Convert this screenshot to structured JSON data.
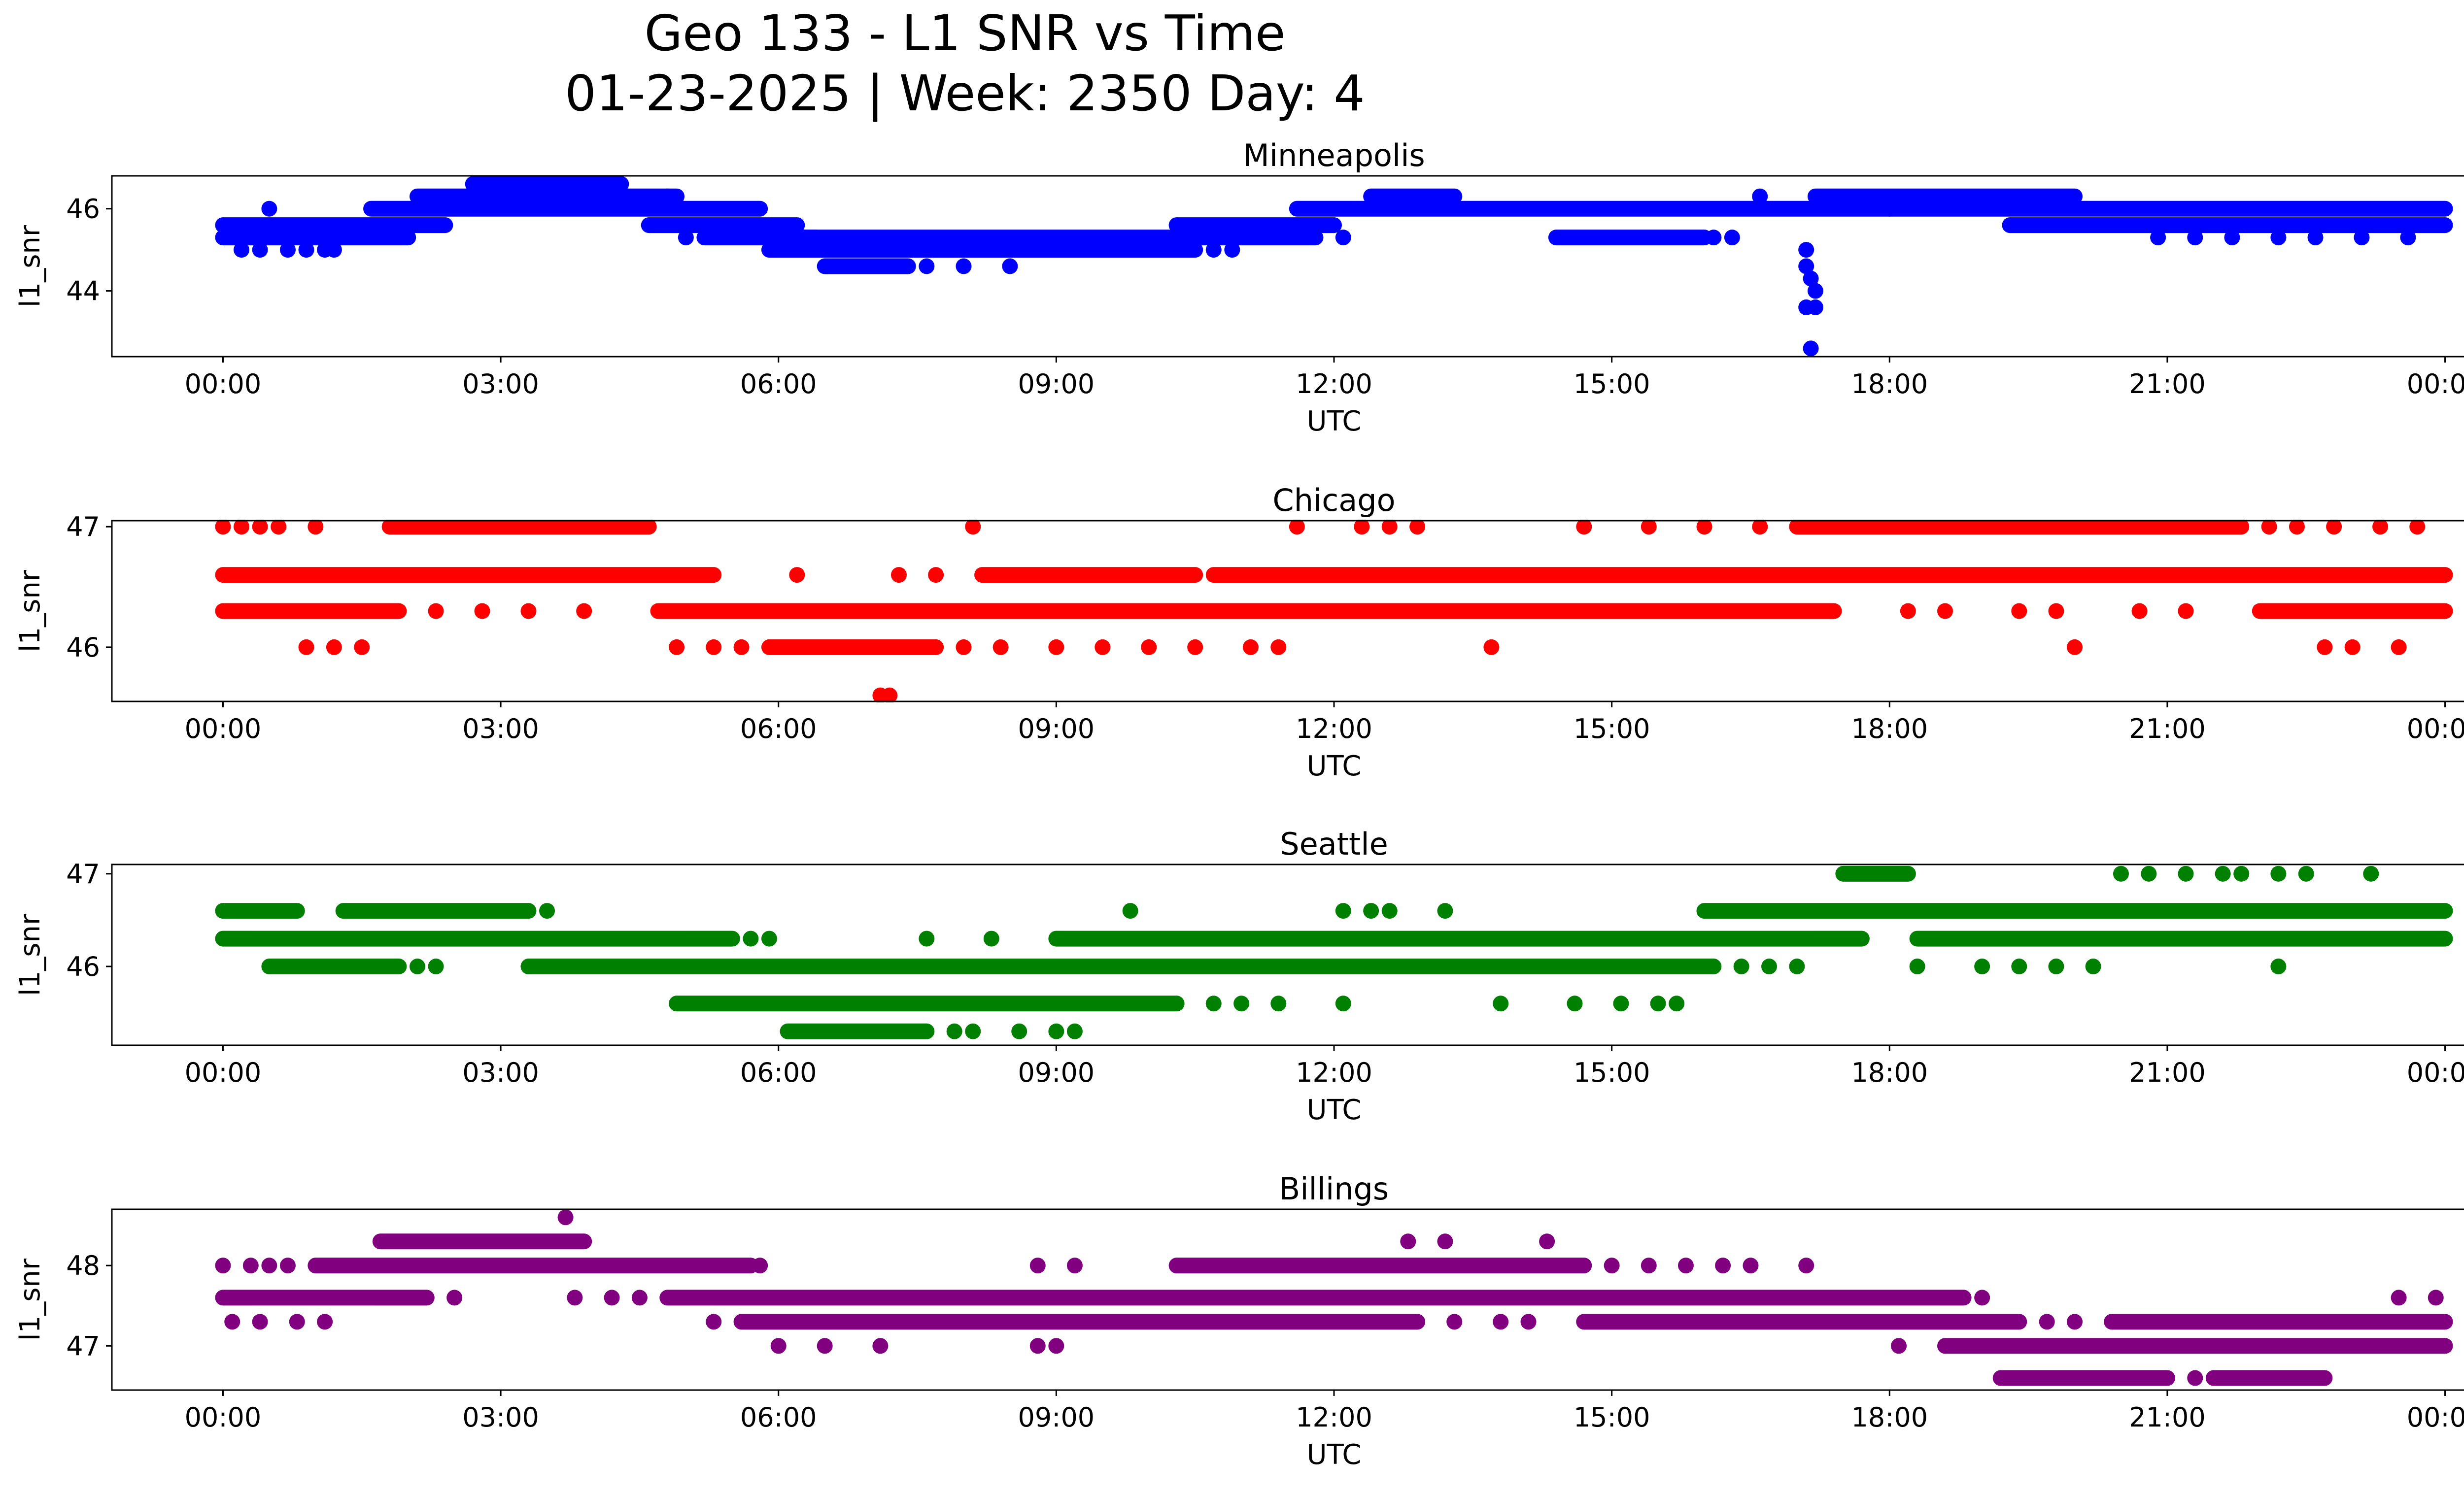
{
  "figure": {
    "title_line1": "Geo 133 - L1 SNR vs Time",
    "title_line2": "01-23-2025 | Week: 2350 Day: 4"
  },
  "chart_data": [
    {
      "type": "scatter",
      "title": "Minneapolis",
      "xlabel": "UTC",
      "ylabel": "l1_snr",
      "color": "#0000ff",
      "xlim": [
        -1.2,
        25.2
      ],
      "ylim": [
        42.4,
        46.8
      ],
      "xticks": [
        0,
        3,
        6,
        9,
        12,
        15,
        18,
        21,
        24
      ],
      "xtick_labels": [
        "00:00",
        "03:00",
        "06:00",
        "09:00",
        "12:00",
        "15:00",
        "18:00",
        "21:00",
        "00:00"
      ],
      "yticks": [
        44,
        46
      ],
      "ytick_labels": [
        "44",
        "46"
      ],
      "segments": [
        {
          "y": 46.6,
          "x0": 2.7,
          "x1": 4.3
        },
        {
          "y": 46.3,
          "x0": 2.1,
          "x1": 4.9
        },
        {
          "y": 46.3,
          "x0": 12.4,
          "x1": 13.3
        },
        {
          "y": 46.3,
          "x0": 17.2,
          "x1": 20.0
        },
        {
          "y": 46.0,
          "x0": 1.6,
          "x1": 5.8
        },
        {
          "y": 46.0,
          "x0": 11.6,
          "x1": 18.0
        },
        {
          "y": 46.0,
          "x0": 18.0,
          "x1": 24.0
        },
        {
          "y": 45.6,
          "x0": 0.0,
          "x1": 2.4
        },
        {
          "y": 45.6,
          "x0": 4.6,
          "x1": 6.2
        },
        {
          "y": 45.6,
          "x0": 10.3,
          "x1": 12.0
        },
        {
          "y": 45.6,
          "x0": 19.3,
          "x1": 24.0
        },
        {
          "y": 45.3,
          "x0": 0.0,
          "x1": 2.0
        },
        {
          "y": 45.3,
          "x0": 5.2,
          "x1": 6.4
        },
        {
          "y": 45.3,
          "x0": 6.2,
          "x1": 11.8
        },
        {
          "y": 45.3,
          "x0": 14.4,
          "x1": 16.0
        },
        {
          "y": 45.0,
          "x0": 5.9,
          "x1": 10.5
        },
        {
          "y": 44.6,
          "x0": 6.5,
          "x1": 7.4
        }
      ],
      "points": [
        {
          "x": 0.5,
          "y": 46.0
        },
        {
          "x": 0.2,
          "y": 45.0
        },
        {
          "x": 0.4,
          "y": 45.0
        },
        {
          "x": 0.7,
          "y": 45.0
        },
        {
          "x": 0.9,
          "y": 45.0
        },
        {
          "x": 1.1,
          "y": 45.0
        },
        {
          "x": 1.2,
          "y": 45.0
        },
        {
          "x": 4.8,
          "y": 46.3
        },
        {
          "x": 5.0,
          "y": 45.3
        },
        {
          "x": 7.6,
          "y": 44.6
        },
        {
          "x": 8.0,
          "y": 44.6
        },
        {
          "x": 8.5,
          "y": 44.6
        },
        {
          "x": 10.7,
          "y": 45.0
        },
        {
          "x": 10.9,
          "y": 45.0
        },
        {
          "x": 12.1,
          "y": 45.3
        },
        {
          "x": 16.6,
          "y": 46.3
        },
        {
          "x": 16.1,
          "y": 45.3
        },
        {
          "x": 16.3,
          "y": 45.3
        },
        {
          "x": 17.1,
          "y": 45.0
        },
        {
          "x": 17.1,
          "y": 44.6
        },
        {
          "x": 17.15,
          "y": 44.3
        },
        {
          "x": 17.2,
          "y": 44.0
        },
        {
          "x": 17.1,
          "y": 43.6
        },
        {
          "x": 17.2,
          "y": 43.6
        },
        {
          "x": 17.15,
          "y": 42.6
        },
        {
          "x": 20.9,
          "y": 45.3
        },
        {
          "x": 21.3,
          "y": 45.3
        },
        {
          "x": 21.7,
          "y": 45.3
        },
        {
          "x": 22.2,
          "y": 45.3
        },
        {
          "x": 22.6,
          "y": 45.3
        },
        {
          "x": 23.1,
          "y": 45.3
        },
        {
          "x": 23.6,
          "y": 45.3
        }
      ]
    },
    {
      "type": "scatter",
      "title": "Chicago",
      "xlabel": "UTC",
      "ylabel": "l1_snr",
      "color": "#ff0000",
      "xlim": [
        -1.2,
        25.2
      ],
      "ylim": [
        45.55,
        47.05
      ],
      "xticks": [
        0,
        3,
        6,
        9,
        12,
        15,
        18,
        21,
        24
      ],
      "xtick_labels": [
        "00:00",
        "03:00",
        "06:00",
        "09:00",
        "12:00",
        "15:00",
        "18:00",
        "21:00",
        "00:00"
      ],
      "yticks": [
        46,
        47
      ],
      "ytick_labels": [
        "46",
        "47"
      ],
      "segments": [
        {
          "y": 47.0,
          "x0": 1.8,
          "x1": 4.6
        },
        {
          "y": 47.0,
          "x0": 17.0,
          "x1": 21.8
        },
        {
          "y": 46.6,
          "x0": 0.0,
          "x1": 5.3
        },
        {
          "y": 46.6,
          "x0": 10.7,
          "x1": 24.0
        },
        {
          "y": 46.6,
          "x0": 8.2,
          "x1": 10.5
        },
        {
          "y": 46.3,
          "x0": 4.7,
          "x1": 12.6
        },
        {
          "y": 46.3,
          "x0": 12.6,
          "x1": 17.4
        },
        {
          "y": 46.3,
          "x0": 0.0,
          "x1": 1.9
        },
        {
          "y": 46.3,
          "x0": 22.0,
          "x1": 24.0
        },
        {
          "y": 46.0,
          "x0": 5.9,
          "x1": 7.7
        }
      ],
      "points": [
        {
          "x": 0.0,
          "y": 47.0
        },
        {
          "x": 0.2,
          "y": 47.0
        },
        {
          "x": 0.4,
          "y": 47.0
        },
        {
          "x": 0.6,
          "y": 47.0
        },
        {
          "x": 1.0,
          "y": 47.0
        },
        {
          "x": 8.1,
          "y": 47.0
        },
        {
          "x": 11.6,
          "y": 47.0
        },
        {
          "x": 12.3,
          "y": 47.0
        },
        {
          "x": 12.6,
          "y": 47.0
        },
        {
          "x": 12.9,
          "y": 47.0
        },
        {
          "x": 14.7,
          "y": 47.0
        },
        {
          "x": 15.4,
          "y": 47.0
        },
        {
          "x": 16.0,
          "y": 47.0
        },
        {
          "x": 16.6,
          "y": 47.0
        },
        {
          "x": 22.1,
          "y": 47.0
        },
        {
          "x": 22.4,
          "y": 47.0
        },
        {
          "x": 22.8,
          "y": 47.0
        },
        {
          "x": 23.3,
          "y": 47.0
        },
        {
          "x": 23.7,
          "y": 47.0
        },
        {
          "x": 2.3,
          "y": 46.3
        },
        {
          "x": 2.8,
          "y": 46.3
        },
        {
          "x": 3.3,
          "y": 46.3
        },
        {
          "x": 3.9,
          "y": 46.3
        },
        {
          "x": 18.2,
          "y": 46.3
        },
        {
          "x": 18.6,
          "y": 46.3
        },
        {
          "x": 19.4,
          "y": 46.3
        },
        {
          "x": 19.8,
          "y": 46.3
        },
        {
          "x": 20.7,
          "y": 46.3
        },
        {
          "x": 21.2,
          "y": 46.3
        },
        {
          "x": 6.2,
          "y": 46.6
        },
        {
          "x": 7.3,
          "y": 46.6
        },
        {
          "x": 7.7,
          "y": 46.6
        },
        {
          "x": 0.9,
          "y": 46.0
        },
        {
          "x": 1.2,
          "y": 46.0
        },
        {
          "x": 1.5,
          "y": 46.0
        },
        {
          "x": 4.9,
          "y": 46.0
        },
        {
          "x": 5.3,
          "y": 46.0
        },
        {
          "x": 5.6,
          "y": 46.0
        },
        {
          "x": 8.0,
          "y": 46.0
        },
        {
          "x": 8.4,
          "y": 46.0
        },
        {
          "x": 9.0,
          "y": 46.0
        },
        {
          "x": 9.5,
          "y": 46.0
        },
        {
          "x": 10.0,
          "y": 46.0
        },
        {
          "x": 10.5,
          "y": 46.0
        },
        {
          "x": 11.1,
          "y": 46.0
        },
        {
          "x": 11.4,
          "y": 46.0
        },
        {
          "x": 13.7,
          "y": 46.0
        },
        {
          "x": 20.0,
          "y": 46.0
        },
        {
          "x": 22.7,
          "y": 46.0
        },
        {
          "x": 23.0,
          "y": 46.0
        },
        {
          "x": 23.5,
          "y": 46.0
        },
        {
          "x": 7.1,
          "y": 45.6
        },
        {
          "x": 7.2,
          "y": 45.6
        }
      ]
    },
    {
      "type": "scatter",
      "title": "Seattle",
      "xlabel": "UTC",
      "ylabel": "l1_snr",
      "color": "#008000",
      "xlim": [
        -1.2,
        25.2
      ],
      "ylim": [
        45.15,
        47.1
      ],
      "xticks": [
        0,
        3,
        6,
        9,
        12,
        15,
        18,
        21,
        24
      ],
      "xtick_labels": [
        "00:00",
        "03:00",
        "06:00",
        "09:00",
        "12:00",
        "15:00",
        "18:00",
        "21:00",
        "00:00"
      ],
      "yticks": [
        46,
        47
      ],
      "ytick_labels": [
        "46",
        "47"
      ],
      "segments": [
        {
          "y": 46.6,
          "x0": 0.0,
          "x1": 0.8
        },
        {
          "y": 46.6,
          "x0": 1.3,
          "x1": 3.3
        },
        {
          "y": 46.6,
          "x0": 16.0,
          "x1": 24.0
        },
        {
          "y": 46.3,
          "x0": 0.0,
          "x1": 5.5
        },
        {
          "y": 46.3,
          "x0": 9.0,
          "x1": 17.7
        },
        {
          "y": 46.3,
          "x0": 18.3,
          "x1": 24.0
        },
        {
          "y": 46.0,
          "x0": 0.5,
          "x1": 1.9
        },
        {
          "y": 46.0,
          "x0": 3.3,
          "x1": 16.1
        },
        {
          "y": 45.6,
          "x0": 4.9,
          "x1": 10.3
        },
        {
          "y": 45.3,
          "x0": 6.1,
          "x1": 7.6
        },
        {
          "y": 47.0,
          "x0": 17.5,
          "x1": 18.2
        }
      ],
      "points": [
        {
          "x": 3.5,
          "y": 46.6
        },
        {
          "x": 9.8,
          "y": 46.6
        },
        {
          "x": 12.1,
          "y": 46.6
        },
        {
          "x": 12.4,
          "y": 46.6
        },
        {
          "x": 12.6,
          "y": 46.6
        },
        {
          "x": 13.2,
          "y": 46.6
        },
        {
          "x": 5.7,
          "y": 46.3
        },
        {
          "x": 5.9,
          "y": 46.3
        },
        {
          "x": 7.6,
          "y": 46.3
        },
        {
          "x": 8.3,
          "y": 46.3
        },
        {
          "x": 2.1,
          "y": 46.0
        },
        {
          "x": 2.3,
          "y": 46.0
        },
        {
          "x": 16.4,
          "y": 46.0
        },
        {
          "x": 16.7,
          "y": 46.0
        },
        {
          "x": 17.0,
          "y": 46.0
        },
        {
          "x": 18.3,
          "y": 46.0
        },
        {
          "x": 19.0,
          "y": 46.0
        },
        {
          "x": 19.4,
          "y": 46.0
        },
        {
          "x": 19.8,
          "y": 46.0
        },
        {
          "x": 20.2,
          "y": 46.0
        },
        {
          "x": 22.2,
          "y": 46.0
        },
        {
          "x": 10.7,
          "y": 45.6
        },
        {
          "x": 11.0,
          "y": 45.6
        },
        {
          "x": 11.4,
          "y": 45.6
        },
        {
          "x": 12.1,
          "y": 45.6
        },
        {
          "x": 13.8,
          "y": 45.6
        },
        {
          "x": 14.6,
          "y": 45.6
        },
        {
          "x": 15.1,
          "y": 45.6
        },
        {
          "x": 15.5,
          "y": 45.6
        },
        {
          "x": 15.7,
          "y": 45.6
        },
        {
          "x": 7.9,
          "y": 45.3
        },
        {
          "x": 8.1,
          "y": 45.3
        },
        {
          "x": 8.6,
          "y": 45.3
        },
        {
          "x": 9.0,
          "y": 45.3
        },
        {
          "x": 9.2,
          "y": 45.3
        },
        {
          "x": 20.5,
          "y": 47.0
        },
        {
          "x": 20.8,
          "y": 47.0
        },
        {
          "x": 21.2,
          "y": 47.0
        },
        {
          "x": 21.6,
          "y": 47.0
        },
        {
          "x": 21.8,
          "y": 47.0
        },
        {
          "x": 22.2,
          "y": 47.0
        },
        {
          "x": 22.5,
          "y": 47.0
        },
        {
          "x": 23.2,
          "y": 47.0
        }
      ]
    },
    {
      "type": "scatter",
      "title": "Billings",
      "xlabel": "UTC",
      "ylabel": "l1_snr",
      "color": "#800080",
      "xlim": [
        -1.2,
        25.2
      ],
      "ylim": [
        46.45,
        48.7
      ],
      "xticks": [
        0,
        3,
        6,
        9,
        12,
        15,
        18,
        21,
        24
      ],
      "xtick_labels": [
        "00:00",
        "03:00",
        "06:00",
        "09:00",
        "12:00",
        "15:00",
        "18:00",
        "21:00",
        "00:00"
      ],
      "yticks": [
        47,
        48
      ],
      "ytick_labels": [
        "47",
        "48"
      ],
      "segments": [
        {
          "y": 48.3,
          "x0": 1.7,
          "x1": 3.9
        },
        {
          "y": 48.0,
          "x0": 1.0,
          "x1": 5.7
        },
        {
          "y": 48.0,
          "x0": 10.3,
          "x1": 14.7
        },
        {
          "y": 47.6,
          "x0": 0.0,
          "x1": 2.2
        },
        {
          "y": 47.6,
          "x0": 4.8,
          "x1": 18.8
        },
        {
          "y": 47.3,
          "x0": 5.6,
          "x1": 12.9
        },
        {
          "y": 47.3,
          "x0": 14.7,
          "x1": 19.4
        },
        {
          "y": 47.3,
          "x0": 20.4,
          "x1": 24.0
        },
        {
          "y": 47.0,
          "x0": 18.6,
          "x1": 24.0
        },
        {
          "y": 46.6,
          "x0": 19.2,
          "x1": 21.0
        },
        {
          "y": 46.6,
          "x0": 21.5,
          "x1": 22.7
        }
      ],
      "points": [
        {
          "x": 3.7,
          "y": 48.6
        },
        {
          "x": 12.8,
          "y": 48.3
        },
        {
          "x": 13.2,
          "y": 48.3
        },
        {
          "x": 14.3,
          "y": 48.3
        },
        {
          "x": 0.0,
          "y": 48.0
        },
        {
          "x": 0.3,
          "y": 48.0
        },
        {
          "x": 0.5,
          "y": 48.0
        },
        {
          "x": 0.7,
          "y": 48.0
        },
        {
          "x": 5.8,
          "y": 48.0
        },
        {
          "x": 8.8,
          "y": 48.0
        },
        {
          "x": 9.2,
          "y": 48.0
        },
        {
          "x": 15.0,
          "y": 48.0
        },
        {
          "x": 15.4,
          "y": 48.0
        },
        {
          "x": 15.8,
          "y": 48.0
        },
        {
          "x": 16.2,
          "y": 48.0
        },
        {
          "x": 16.5,
          "y": 48.0
        },
        {
          "x": 17.1,
          "y": 48.0
        },
        {
          "x": 2.5,
          "y": 47.6
        },
        {
          "x": 3.8,
          "y": 47.6
        },
        {
          "x": 4.2,
          "y": 47.6
        },
        {
          "x": 4.5,
          "y": 47.6
        },
        {
          "x": 19.0,
          "y": 47.6
        },
        {
          "x": 23.5,
          "y": 47.6
        },
        {
          "x": 23.9,
          "y": 47.6
        },
        {
          "x": 0.1,
          "y": 47.3
        },
        {
          "x": 0.4,
          "y": 47.3
        },
        {
          "x": 0.8,
          "y": 47.3
        },
        {
          "x": 1.1,
          "y": 47.3
        },
        {
          "x": 5.3,
          "y": 47.3
        },
        {
          "x": 13.3,
          "y": 47.3
        },
        {
          "x": 13.8,
          "y": 47.3
        },
        {
          "x": 14.1,
          "y": 47.3
        },
        {
          "x": 19.7,
          "y": 47.3
        },
        {
          "x": 20.0,
          "y": 47.3
        },
        {
          "x": 6.0,
          "y": 47.0
        },
        {
          "x": 6.5,
          "y": 47.0
        },
        {
          "x": 7.1,
          "y": 47.0
        },
        {
          "x": 8.8,
          "y": 47.0
        },
        {
          "x": 9.0,
          "y": 47.0
        },
        {
          "x": 18.1,
          "y": 47.0
        },
        {
          "x": 21.3,
          "y": 46.6
        }
      ]
    }
  ]
}
